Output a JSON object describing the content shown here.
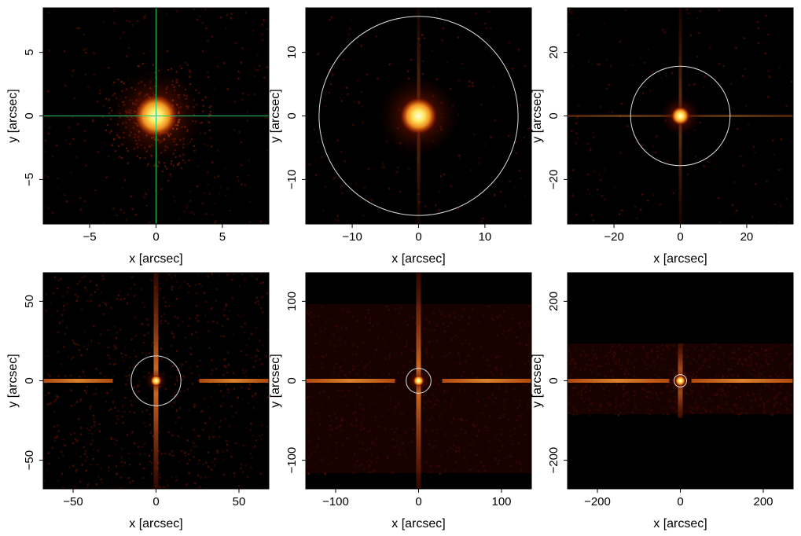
{
  "chart_data": [
    {
      "type": "heatmap",
      "panel": "top-left",
      "xlabel": "x [arcsec]",
      "ylabel": "y [arcsec]",
      "xlim": [
        -8.5,
        8.5
      ],
      "ylim": [
        -8.5,
        8.5
      ],
      "xticks": [
        -5,
        0,
        5
      ],
      "yticks": [
        -5,
        0,
        5
      ],
      "circle_radius": null,
      "crosshair": true,
      "crosshair_color": "#22c55e"
    },
    {
      "type": "heatmap",
      "panel": "top-middle",
      "xlabel": "x [arcsec]",
      "ylabel": "y [arcsec]",
      "xlim": [
        -17,
        17
      ],
      "ylim": [
        -17,
        17
      ],
      "xticks": [
        -10,
        0,
        10
      ],
      "yticks": [
        -10,
        0,
        10
      ],
      "circle_radius": 15,
      "crosshair": false
    },
    {
      "type": "heatmap",
      "panel": "top-right",
      "xlabel": "x [arcsec]",
      "ylabel": "y [arcsec]",
      "xlim": [
        -34,
        34
      ],
      "ylim": [
        -34,
        34
      ],
      "xticks": [
        -20,
        0,
        20
      ],
      "yticks": [
        -20,
        0,
        20
      ],
      "circle_radius": 15,
      "crosshair": false
    },
    {
      "type": "heatmap",
      "panel": "bottom-left",
      "xlabel": "x [arcsec]",
      "ylabel": "y [arcsec]",
      "xlim": [
        -68,
        68
      ],
      "ylim": [
        -68,
        68
      ],
      "xticks": [
        -50,
        0,
        50
      ],
      "yticks": [
        -50,
        0,
        50
      ],
      "circle_radius": 15,
      "crosshair": false
    },
    {
      "type": "heatmap",
      "panel": "bottom-middle",
      "xlabel": "x [arcsec]",
      "ylabel": "y [arcsec]",
      "xlim": [
        -136,
        136
      ],
      "ylim": [
        -136,
        136
      ],
      "xticks": [
        -100,
        0,
        100
      ],
      "yticks": [
        -100,
        0,
        100
      ],
      "circle_radius": 15,
      "crosshair": false
    },
    {
      "type": "heatmap",
      "panel": "bottom-right",
      "xlabel": "x [arcsec]",
      "ylabel": "y [arcsec]",
      "xlim": [
        -272,
        272
      ],
      "ylim": [
        -272,
        272
      ],
      "xticks": [
        -200,
        0,
        200
      ],
      "yticks": [
        -200,
        0,
        200
      ],
      "circle_radius": 15,
      "crosshair": false
    }
  ],
  "colors": {
    "background": "#000000",
    "colormap": [
      "#000000",
      "#3a0300",
      "#7a1500",
      "#c04000",
      "#f08020",
      "#ffd040",
      "#ffffc8"
    ],
    "circle": "#dddddd"
  }
}
